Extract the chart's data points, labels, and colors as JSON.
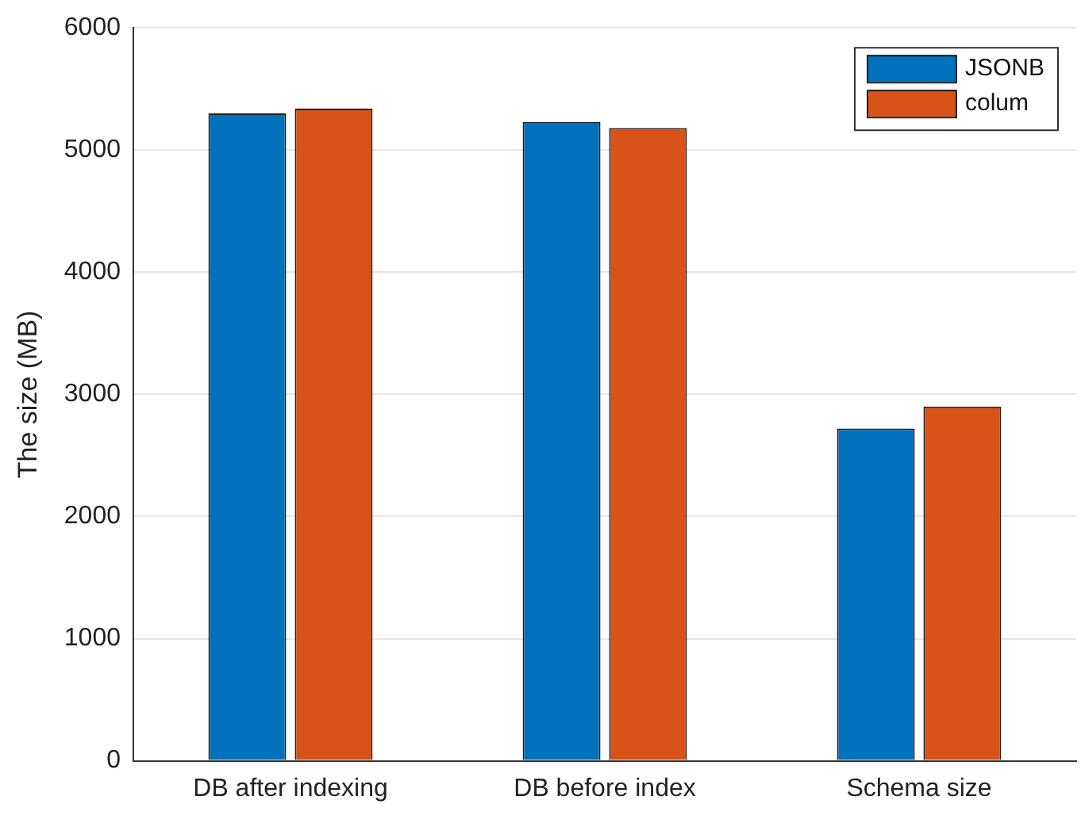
{
  "chart_data": {
    "type": "bar",
    "ylabel": "The size (MB)",
    "categories": [
      "DB after indexing",
      "DB before index",
      "Schema size"
    ],
    "series": [
      {
        "name": "JSONB",
        "color": "#0072bd",
        "values": [
          5300,
          5230,
          2720
        ]
      },
      {
        "name": "colum",
        "color": "#d95319",
        "values": [
          5340,
          5180,
          2900
        ]
      }
    ],
    "ylim": [
      0,
      6000
    ],
    "yticks": [
      0,
      1000,
      2000,
      3000,
      4000,
      5000,
      6000
    ],
    "grid": "y",
    "legend": "top right"
  }
}
